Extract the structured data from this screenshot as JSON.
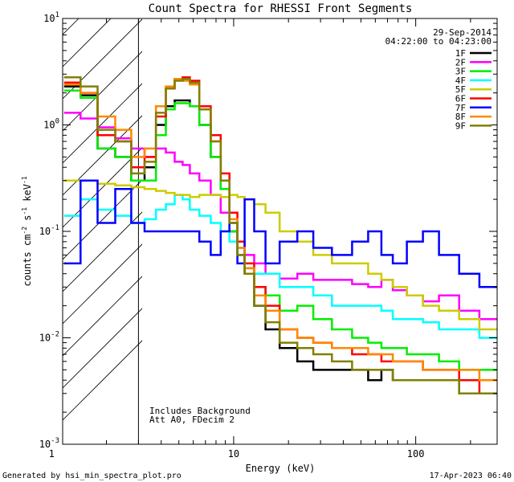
{
  "chart_data": {
    "type": "line",
    "title": "Count Spectra for RHESSI Front Segments",
    "xlabel": "Energy (keV)",
    "ylabel_parts": {
      "base": "counts cm",
      "exp1": "-2",
      "mid": " s",
      "exp2": "-1",
      "unit": " keV",
      "exp3": "-1"
    },
    "xscale": "log",
    "yscale": "log",
    "xlim": [
      1.15,
      280
    ],
    "ylim": [
      0.001,
      10
    ],
    "x_ticks": [
      {
        "value": 10,
        "label": "10"
      },
      {
        "value": 100,
        "label": "100"
      }
    ],
    "y_ticks": [
      {
        "value": 0.001,
        "base": "10",
        "exp": "-3"
      },
      {
        "value": 0.01,
        "base": "10",
        "exp": "-2"
      },
      {
        "value": 0.1,
        "base": "10",
        "exp": "-1"
      },
      {
        "value": 1,
        "base": "10",
        "exp": "0"
      },
      {
        "value": 10,
        "base": "10",
        "exp": "1"
      }
    ],
    "hatched_region_keV": [
      1.15,
      3
    ],
    "date": "29-Sep-2014",
    "time_range": "04:22:00 to 04:23:00",
    "annotations": [
      "Includes Background",
      "Att A0, FDecim 2"
    ],
    "footer_left": "Generated by hsi_min_spectra_plot.pro",
    "footer_right": "17-Apr-2023 06:40",
    "series": [
      {
        "name": "1F",
        "color": "#000000",
        "x": [
          1.3,
          1.6,
          2,
          2.5,
          3,
          3.5,
          4,
          4.5,
          5,
          5.5,
          6,
          7,
          8,
          9,
          10,
          11,
          12,
          14,
          16,
          20,
          25,
          30,
          40,
          50,
          60,
          70,
          80,
          100,
          120,
          150,
          200,
          250
        ],
        "values": [
          2.3,
          1.9,
          0.6,
          0.5,
          0.3,
          0.4,
          1.0,
          1.5,
          1.7,
          1.7,
          1.5,
          1.0,
          0.5,
          0.25,
          0.1,
          0.06,
          0.04,
          0.02,
          0.012,
          0.008,
          0.006,
          0.005,
          0.005,
          0.005,
          0.004,
          0.005,
          0.004,
          0.004,
          0.004,
          0.004,
          0.003,
          0.003
        ]
      },
      {
        "name": "2F",
        "color": "#ff00ff",
        "x": [
          1.3,
          1.6,
          2,
          2.5,
          3,
          3.5,
          4,
          4.5,
          5,
          5.5,
          6,
          7,
          8,
          9,
          10,
          11,
          12,
          14,
          16,
          20,
          25,
          30,
          40,
          50,
          60,
          70,
          80,
          100,
          120,
          150,
          200,
          250
        ],
        "values": [
          1.3,
          1.15,
          0.95,
          0.75,
          0.6,
          0.5,
          0.6,
          0.55,
          0.45,
          0.42,
          0.35,
          0.3,
          0.22,
          0.15,
          0.1,
          0.08,
          0.06,
          0.05,
          0.04,
          0.036,
          0.04,
          0.035,
          0.035,
          0.032,
          0.03,
          0.035,
          0.028,
          0.025,
          0.022,
          0.025,
          0.018,
          0.015
        ]
      },
      {
        "name": "3F",
        "color": "#00ee00",
        "x": [
          1.3,
          1.6,
          2,
          2.5,
          3,
          3.5,
          4,
          4.5,
          5,
          5.5,
          6,
          7,
          8,
          9,
          10,
          11,
          12,
          14,
          16,
          20,
          25,
          30,
          40,
          50,
          60,
          70,
          80,
          100,
          120,
          150,
          200,
          250
        ],
        "values": [
          2.1,
          1.8,
          0.6,
          0.5,
          0.3,
          0.3,
          0.8,
          1.4,
          1.6,
          1.6,
          1.5,
          1.0,
          0.5,
          0.25,
          0.1,
          0.06,
          0.045,
          0.03,
          0.025,
          0.018,
          0.02,
          0.015,
          0.012,
          0.01,
          0.009,
          0.008,
          0.008,
          0.007,
          0.007,
          0.006,
          0.005,
          0.005
        ]
      },
      {
        "name": "4F",
        "color": "#00ffff",
        "x": [
          1.3,
          1.6,
          2,
          2.5,
          3,
          3.5,
          4,
          4.5,
          5,
          5.5,
          6,
          7,
          8,
          9,
          10,
          11,
          12,
          14,
          16,
          20,
          25,
          30,
          40,
          50,
          60,
          70,
          80,
          100,
          120,
          150,
          200,
          250
        ],
        "values": [
          0.14,
          0.2,
          0.16,
          0.14,
          0.12,
          0.13,
          0.16,
          0.18,
          0.22,
          0.2,
          0.16,
          0.14,
          0.12,
          0.1,
          0.08,
          0.07,
          0.05,
          0.04,
          0.04,
          0.03,
          0.03,
          0.025,
          0.02,
          0.02,
          0.02,
          0.018,
          0.015,
          0.015,
          0.014,
          0.012,
          0.012,
          0.01
        ]
      },
      {
        "name": "5F",
        "color": "#cccc00",
        "x": [
          1.3,
          1.6,
          2,
          2.5,
          3,
          3.5,
          4,
          4.5,
          5,
          5.5,
          6,
          7,
          8,
          9,
          10,
          11,
          12,
          14,
          16,
          20,
          25,
          30,
          40,
          50,
          60,
          70,
          80,
          100,
          120,
          150,
          200,
          250
        ],
        "values": [
          0.3,
          0.3,
          0.28,
          0.27,
          0.26,
          0.25,
          0.24,
          0.23,
          0.22,
          0.22,
          0.21,
          0.22,
          0.22,
          0.21,
          0.22,
          0.21,
          0.2,
          0.18,
          0.15,
          0.1,
          0.08,
          0.06,
          0.05,
          0.05,
          0.04,
          0.035,
          0.03,
          0.025,
          0.02,
          0.018,
          0.015,
          0.012
        ]
      },
      {
        "name": "6F",
        "color": "#ff0000",
        "x": [
          1.3,
          1.6,
          2,
          2.5,
          3,
          3.5,
          4,
          4.5,
          5,
          5.5,
          6,
          7,
          8,
          9,
          10,
          11,
          12,
          14,
          16,
          20,
          25,
          30,
          40,
          50,
          60,
          70,
          80,
          100,
          120,
          150,
          200,
          250
        ],
        "values": [
          2.5,
          2.0,
          0.8,
          0.7,
          0.4,
          0.5,
          1.2,
          2.2,
          2.7,
          2.8,
          2.6,
          1.5,
          0.8,
          0.35,
          0.15,
          0.08,
          0.05,
          0.03,
          0.02,
          0.012,
          0.01,
          0.009,
          0.008,
          0.007,
          0.007,
          0.006,
          0.006,
          0.006,
          0.005,
          0.005,
          0.004,
          0.003
        ]
      },
      {
        "name": "7F",
        "color": "#0000ff",
        "x": [
          1.3,
          1.6,
          2,
          2.5,
          3,
          3.5,
          4,
          4.5,
          5,
          5.5,
          6,
          7,
          8,
          9,
          10,
          11,
          12,
          14,
          16,
          20,
          25,
          30,
          40,
          50,
          60,
          70,
          80,
          100,
          120,
          150,
          200,
          250
        ],
        "values": [
          0.05,
          0.3,
          0.12,
          0.25,
          0.12,
          0.1,
          0.1,
          0.1,
          0.1,
          0.1,
          0.1,
          0.08,
          0.06,
          0.1,
          0.12,
          0.05,
          0.2,
          0.1,
          0.05,
          0.08,
          0.1,
          0.07,
          0.06,
          0.08,
          0.1,
          0.06,
          0.05,
          0.08,
          0.1,
          0.06,
          0.04,
          0.03
        ]
      },
      {
        "name": "8F",
        "color": "#ff8800",
        "x": [
          1.3,
          1.6,
          2,
          2.5,
          3,
          3.5,
          4,
          4.5,
          5,
          5.5,
          6,
          7,
          8,
          9,
          10,
          11,
          12,
          14,
          16,
          20,
          25,
          30,
          40,
          50,
          60,
          70,
          80,
          100,
          120,
          150,
          200,
          250
        ],
        "values": [
          2.4,
          2.0,
          1.2,
          0.9,
          0.5,
          0.6,
          1.5,
          2.3,
          2.7,
          2.6,
          2.4,
          1.4,
          0.7,
          0.3,
          0.13,
          0.07,
          0.045,
          0.025,
          0.018,
          0.012,
          0.01,
          0.009,
          0.008,
          0.008,
          0.007,
          0.007,
          0.006,
          0.006,
          0.005,
          0.005,
          0.005,
          0.004
        ]
      },
      {
        "name": "9F",
        "color": "#808000",
        "x": [
          1.3,
          1.6,
          2,
          2.5,
          3,
          3.5,
          4,
          4.5,
          5,
          5.5,
          6,
          7,
          8,
          9,
          10,
          11,
          12,
          14,
          16,
          20,
          25,
          30,
          40,
          50,
          60,
          70,
          80,
          100,
          120,
          150,
          200,
          250
        ],
        "values": [
          2.8,
          2.3,
          0.9,
          0.7,
          0.35,
          0.45,
          1.3,
          2.2,
          2.6,
          2.7,
          2.5,
          1.4,
          0.7,
          0.3,
          0.12,
          0.06,
          0.04,
          0.02,
          0.014,
          0.009,
          0.008,
          0.007,
          0.006,
          0.005,
          0.005,
          0.005,
          0.004,
          0.004,
          0.004,
          0.004,
          0.003,
          0.003
        ]
      }
    ]
  }
}
